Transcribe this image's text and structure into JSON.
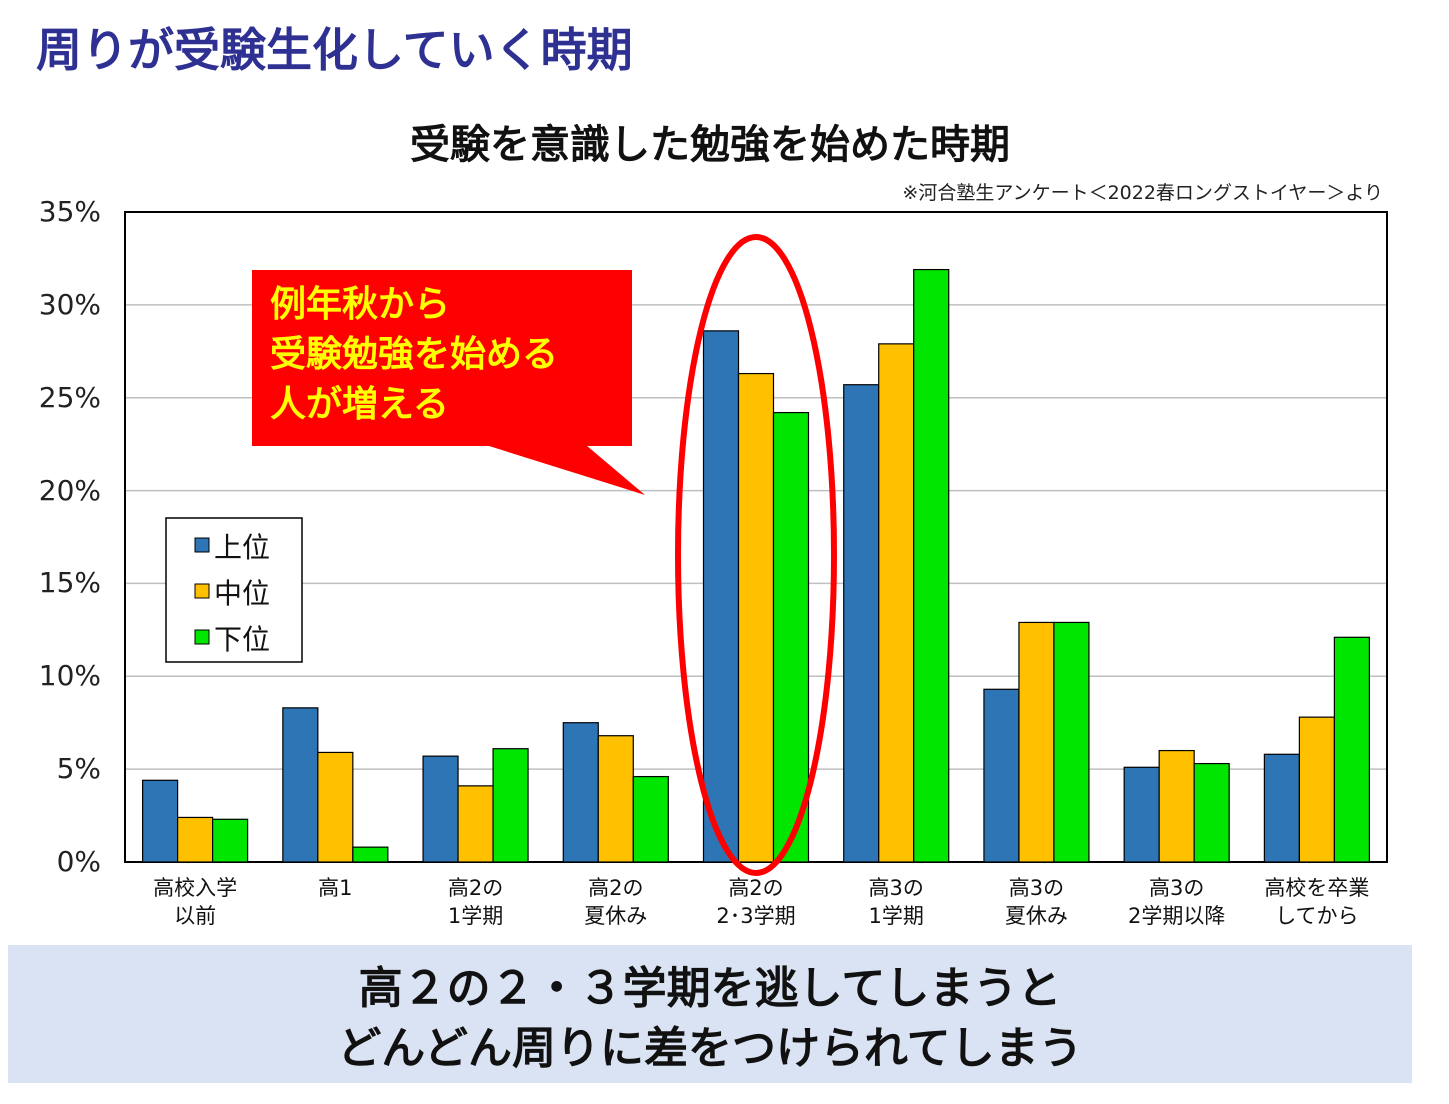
{
  "header": {
    "title": "周りが受験生化していく時期"
  },
  "chart_data": {
    "type": "bar",
    "title": "受験を意識した勉強を始めた時期",
    "source": "※河合塾生アンケート＜2022春ロングストイヤー＞より",
    "categories": [
      "高校入学\n以前",
      "高1",
      "高2の\n1学期",
      "高2の\n夏休み",
      "高2の\n2･3学期",
      "高3の\n1学期",
      "高3の\n夏休み",
      "高3の\n2学期以降",
      "高校を卒業\nしてから"
    ],
    "series": [
      {
        "name": "上位",
        "color": "#2e75b6",
        "values": [
          4.4,
          8.3,
          5.7,
          7.5,
          28.6,
          25.7,
          9.3,
          5.1,
          5.8
        ]
      },
      {
        "name": "中位",
        "color": "#ffc000",
        "values": [
          2.4,
          5.9,
          4.1,
          6.8,
          26.3,
          27.9,
          12.9,
          6.0,
          7.8
        ]
      },
      {
        "name": "下位",
        "color": "#00e600",
        "values": [
          2.3,
          0.8,
          6.1,
          4.6,
          24.2,
          31.9,
          12.9,
          5.3,
          12.1
        ]
      }
    ],
    "ylim": [
      0,
      35
    ],
    "yticks": [
      {
        "value": 0,
        "label": "0%"
      },
      {
        "value": 5,
        "label": "5%"
      },
      {
        "value": 10,
        "label": "10%"
      },
      {
        "value": 15,
        "label": "15%"
      },
      {
        "value": 20,
        "label": "20%"
      },
      {
        "value": 25,
        "label": "25%"
      },
      {
        "value": 30,
        "label": "30%"
      },
      {
        "value": 35,
        "label": "35%"
      }
    ],
    "grid": true,
    "legend_position": "left",
    "annotation": "例年秋から\n受験勉強を始める\n人が増える"
  },
  "footer": {
    "lines": [
      "高２の２・３学期を逃してしまうと",
      "どんどん周りに差をつけられてしまう"
    ]
  }
}
